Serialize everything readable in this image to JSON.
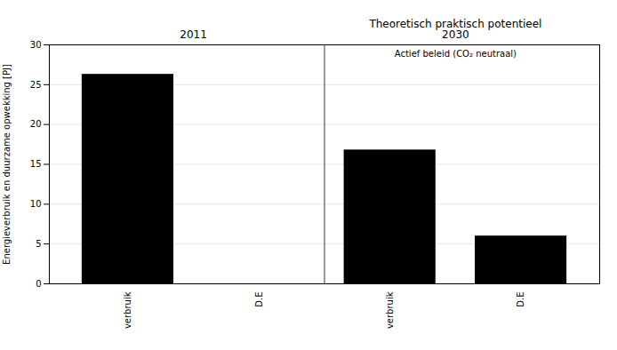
{
  "chart_data": {
    "type": "bar",
    "categories": [
      "verbruik",
      "D.E",
      "verbruik",
      "D.E"
    ],
    "values": [
      26.3,
      0.0,
      16.8,
      6.0
    ],
    "ylabel": "Energieverbruik en duurzame opwekking [PJ]",
    "ylim": [
      0,
      30
    ],
    "yticks": [
      0,
      5,
      10,
      15,
      20,
      25,
      30
    ],
    "grid": true,
    "annotations": [
      "2011",
      "Theoretisch praktisch potentieel\n2030",
      "Actief beleid (CO₂ neutraal)"
    ]
  }
}
